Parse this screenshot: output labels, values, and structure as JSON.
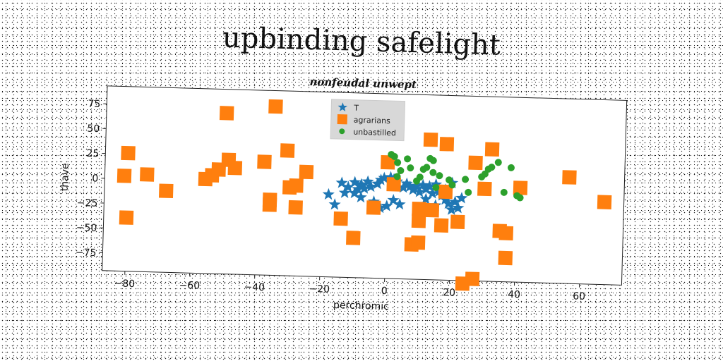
{
  "title": "upbinding safelight",
  "chart_data": {
    "type": "scatter",
    "subtitle": "nonfeudal unwept",
    "xlabel": "perchromic",
    "ylabel": "thave",
    "xlim": [
      -87,
      73
    ],
    "ylim": [
      -93,
      93
    ],
    "xticks": [
      -80,
      -60,
      -40,
      -20,
      0,
      20,
      40,
      60
    ],
    "yticks": [
      -75,
      -50,
      -25,
      0,
      25,
      50,
      75
    ],
    "grid": false,
    "legend_position": "top-center",
    "series": [
      {
        "name": "T",
        "marker": "star",
        "color": "#1f77b4",
        "points": [
          [
            -14,
            2
          ],
          [
            -12,
            -2
          ],
          [
            -10,
            3
          ],
          [
            -9,
            -4
          ],
          [
            -8,
            1
          ],
          [
            -7,
            -3
          ],
          [
            -6,
            4
          ],
          [
            -5,
            -1
          ],
          [
            -3,
            2
          ],
          [
            -2,
            6
          ],
          [
            -1,
            8
          ],
          [
            1,
            9
          ],
          [
            2,
            7
          ],
          [
            3,
            5
          ],
          [
            5,
            -1
          ],
          [
            6,
            3
          ],
          [
            7,
            0
          ],
          [
            8,
            -3
          ],
          [
            9,
            1
          ],
          [
            10,
            -5
          ],
          [
            11,
            2
          ],
          [
            12,
            -2
          ],
          [
            13,
            1
          ],
          [
            14,
            -6
          ],
          [
            15,
            3
          ],
          [
            16,
            -4
          ],
          [
            17,
            -8
          ],
          [
            18,
            -12
          ],
          [
            19,
            -16
          ],
          [
            20,
            -22
          ],
          [
            21,
            -14
          ],
          [
            22,
            -20
          ],
          [
            23,
            -10
          ],
          [
            20,
            5
          ],
          [
            18,
            -2
          ],
          [
            15,
            -18
          ],
          [
            12,
            -12
          ],
          [
            4,
            -18
          ],
          [
            2,
            -14
          ],
          [
            0,
            -20
          ],
          [
            -2,
            -22
          ],
          [
            -4,
            -16
          ],
          [
            -8,
            -12
          ],
          [
            -10,
            -8
          ],
          [
            -13,
            -8
          ],
          [
            -16,
            -20
          ],
          [
            -18,
            -10
          ]
        ]
      },
      {
        "name": "agrarians",
        "marker": "square",
        "color": "#ff7f0e",
        "points": [
          [
            -80,
            26
          ],
          [
            -81,
            3
          ],
          [
            -80,
            -39
          ],
          [
            -74,
            5
          ],
          [
            -68,
            -11
          ],
          [
            -56,
            2
          ],
          [
            -54,
            6
          ],
          [
            -52,
            12
          ],
          [
            -50,
            69
          ],
          [
            -49,
            22
          ],
          [
            -47,
            14
          ],
          [
            -38,
            21
          ],
          [
            -35,
            77
          ],
          [
            -36,
            -17
          ],
          [
            -36,
            -22
          ],
          [
            -31,
            33
          ],
          [
            -30,
            -4
          ],
          [
            -28,
            -2
          ],
          [
            -28,
            -24
          ],
          [
            -25,
            12
          ],
          [
            -14,
            -34
          ],
          [
            -10,
            -53
          ],
          [
            -4,
            -22
          ],
          [
            0,
            24
          ],
          [
            2,
            2
          ],
          [
            8,
            -58
          ],
          [
            10,
            -56
          ],
          [
            10,
            -34
          ],
          [
            10,
            -22
          ],
          [
            13,
            48
          ],
          [
            14,
            -23
          ],
          [
            17,
            -38
          ],
          [
            18,
            44
          ],
          [
            18,
            -4
          ],
          [
            22,
            -34
          ],
          [
            24,
            -96
          ],
          [
            27,
            -91
          ],
          [
            27,
            26
          ],
          [
            30,
            0
          ],
          [
            32,
            40
          ],
          [
            35,
            -42
          ],
          [
            37,
            -44
          ],
          [
            37,
            -69
          ],
          [
            41,
            2
          ],
          [
            56,
            14
          ],
          [
            67,
            -10
          ]
        ]
      },
      {
        "name": "unbastilled",
        "marker": "circle",
        "color": "#2ca02c",
        "points": [
          [
            1,
            32
          ],
          [
            2,
            30
          ],
          [
            3,
            24
          ],
          [
            3,
            10
          ],
          [
            4,
            16
          ],
          [
            6,
            28
          ],
          [
            7,
            19
          ],
          [
            9,
            6
          ],
          [
            10,
            10
          ],
          [
            11,
            18
          ],
          [
            12,
            20
          ],
          [
            13,
            29
          ],
          [
            14,
            27
          ],
          [
            14,
            15
          ],
          [
            15,
            0
          ],
          [
            16,
            12
          ],
          [
            19,
            8
          ],
          [
            20,
            3
          ],
          [
            24,
            9
          ],
          [
            25,
            -4
          ],
          [
            29,
            12
          ],
          [
            30,
            15
          ],
          [
            31,
            20
          ],
          [
            32,
            22
          ],
          [
            34,
            27
          ],
          [
            36,
            -3
          ],
          [
            38,
            22
          ],
          [
            40,
            -6
          ],
          [
            41,
            -8
          ]
        ]
      }
    ]
  }
}
